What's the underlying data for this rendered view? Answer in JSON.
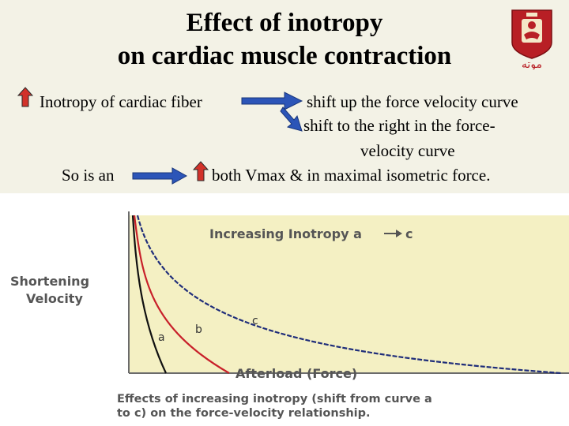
{
  "slide": {
    "title_line1": "Effect of inotropy",
    "title_line2": "on cardiac muscle contraction",
    "logo_text": "موته",
    "lines": {
      "inotropy_label": "Inotropy of cardiac fiber",
      "effect_up": "shift up the force velocity curve",
      "effect_right_1": "shift to the right in the force-",
      "effect_right_2": "velocity curve",
      "so_is_an": "So is an",
      "both_text": "both Vmax & in maximal isometric force."
    }
  },
  "figure": {
    "ylabel_line1": "Shortening",
    "ylabel_line2": "Velocity",
    "inner_title": "Increasing Inotropy a",
    "inner_title_end": "c",
    "xlabel": "Afterload (Force)",
    "caption_line1": "Effects of increasing inotropy (shift from curve a",
    "caption_line2": "to c) on the force-velocity relationship.",
    "curves": [
      {
        "label": "a",
        "color": "#111111"
      },
      {
        "label": "b",
        "color": "#c8202a"
      },
      {
        "label": "c",
        "color": "#1f2d7a"
      }
    ],
    "colors": {
      "plot_bg": "#f4f0c3",
      "arrow_up_fill": "#d2322a",
      "arrow_right_fill": "#2c55b8"
    }
  }
}
